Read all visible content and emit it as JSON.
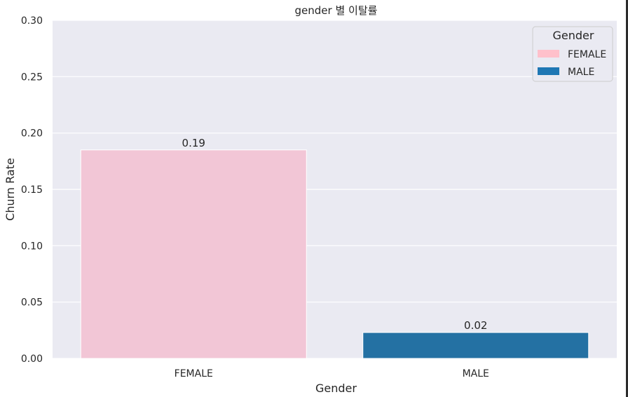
{
  "chart_data": {
    "type": "bar",
    "title": "gender 별 이탈률",
    "xlabel": "Gender",
    "ylabel": "Churn Rate",
    "categories": [
      "FEMALE",
      "MALE"
    ],
    "values": [
      0.185,
      0.023
    ],
    "bar_labels": [
      "0.19",
      "0.02"
    ],
    "colors": [
      "#f2c6d6",
      "#2471a3"
    ],
    "ylim": [
      0,
      0.3
    ],
    "yticks": [
      "0.00",
      "0.05",
      "0.10",
      "0.15",
      "0.20",
      "0.25",
      "0.30"
    ],
    "ytick_values": [
      0,
      0.05,
      0.1,
      0.15,
      0.2,
      0.25,
      0.3
    ],
    "grid": true,
    "background": "#eaeaf2",
    "legend": {
      "title": "Gender",
      "placement": "top-right",
      "entries": [
        {
          "label": "FEMALE",
          "color": "#ffc0cb"
        },
        {
          "label": "MALE",
          "color": "#1f77b4"
        }
      ]
    }
  }
}
